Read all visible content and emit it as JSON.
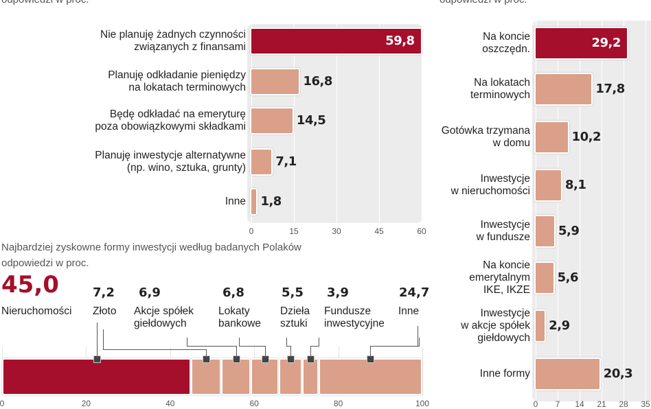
{
  "colors": {
    "highlight": "#a50f2b",
    "bar": "#dba08a",
    "panel": "#ececec"
  },
  "left_header": {
    "subtitle": "odpowiedzi w proc."
  },
  "right_header": {
    "subtitle": "odpowiedzi w proc."
  },
  "chart_data": [
    {
      "type": "bar",
      "orientation": "horizontal",
      "categories": [
        "Nie planuję żadnych czynności\nzwiązanych z finansami",
        "Planuję odkładanie pieniędzy\nna lokatach terminowych",
        "Będę odkładać na emeryturę\npoza obowiązkowymi składkami",
        "Planuję inwestycje alternatywne\n(np. wino, sztuka, grunty)",
        "Inne"
      ],
      "values": [
        59.8,
        16.8,
        14.5,
        7.1,
        1.8
      ],
      "value_labels": [
        "59,8",
        "16,8",
        "14,5",
        "7,1",
        "1,8"
      ],
      "xlim": [
        0,
        60
      ],
      "xticks": [
        "0",
        "15",
        "30",
        "45",
        "60"
      ],
      "grid": true,
      "subtitle": "odpowiedzi w proc."
    },
    {
      "type": "bar",
      "orientation": "horizontal",
      "categories": [
        "Na koncie\noszczędn.",
        "Na lokatach\nterminowych",
        "Gotówka trzymana\nw domu",
        "Inwestycje\nw nieruchomości",
        "Inwestycje\nw fundusze",
        "Na koncie\nemerytalnym\nIKE, IKZE",
        "Inwestycje\nw akcje spółek\ngiełdowych",
        "Inne formy"
      ],
      "values": [
        29.2,
        17.8,
        10.2,
        8.1,
        5.9,
        5.6,
        2.9,
        20.3
      ],
      "value_labels": [
        "29,2",
        "17,8",
        "10,2",
        "8,1",
        "5,9",
        "5,6",
        "2,9",
        "20,3"
      ],
      "xlim": [
        0,
        35
      ],
      "xticks": [
        "0",
        "7",
        "14",
        "21",
        "28",
        "35"
      ],
      "grid": true,
      "subtitle": "odpowiedzi w proc."
    },
    {
      "type": "bar",
      "orientation": "stacked-horizontal",
      "title": "Najbardziej zyskowne formy inwestycji według badanych Polaków",
      "subtitle": "odpowiedzi w proc.",
      "categories": [
        "Nieruchomości",
        "Złoto",
        "Akcje spółek\ngiełdowych",
        "Lokaty\nbankowe",
        "Dzieła\nsztuki",
        "Fundusze\ninwestycyjne",
        "Inne"
      ],
      "values": [
        45.0,
        7.2,
        6.9,
        6.8,
        5.5,
        3.9,
        24.7
      ],
      "value_labels": [
        "45,0",
        "7,2",
        "6,9",
        "6,8",
        "5,5",
        "3,9",
        "24,7"
      ],
      "xlim": [
        0,
        100
      ],
      "xticks": [
        "0",
        "20",
        "40",
        "60",
        "80",
        "100"
      ],
      "grid": true
    }
  ]
}
